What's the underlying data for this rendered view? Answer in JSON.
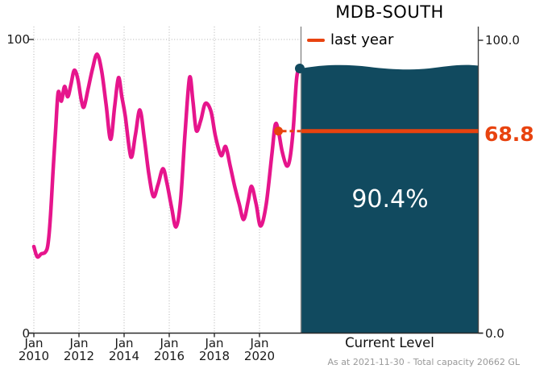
{
  "chart_data": {
    "type": "line",
    "title": "MDB-SOUTH",
    "legend": {
      "label": "last year",
      "position": "upper right panel"
    },
    "footnote": "As at 2021-11-30 - Total capacity 20662 GL",
    "colors": {
      "history_line": "#e6158c",
      "last_year": "#e8430f",
      "water": "#114a5f",
      "grid": "#b0b0b0",
      "spine": "#2b2b2b",
      "panel_spine": "#888888",
      "footnote_gray": "#999999"
    },
    "left_axis": {
      "range": [
        0,
        100
      ],
      "ticks": [
        {
          "value": 100,
          "label": "100"
        },
        {
          "value": 0,
          "label": "0"
        }
      ]
    },
    "right_axis": {
      "range": [
        0,
        100
      ],
      "ticks": [
        {
          "value": 100,
          "label": "100.0"
        },
        {
          "value": 0,
          "label": "0.0"
        }
      ]
    },
    "x_ticks": [
      {
        "year": 2010,
        "line1": "Jan",
        "line2": "2010"
      },
      {
        "year": 2012,
        "line1": "Jan",
        "line2": "2012"
      },
      {
        "year": 2014,
        "line1": "Jan",
        "line2": "2014"
      },
      {
        "year": 2016,
        "line1": "Jan",
        "line2": "2016"
      },
      {
        "year": 2018,
        "line1": "Jan",
        "line2": "2018"
      },
      {
        "year": 2020,
        "line1": "Jan",
        "line2": "2020"
      }
    ],
    "series": {
      "name": "storage-percentage-history",
      "x_unit": "decimal-year",
      "y_unit": "percent-full",
      "points": [
        [
          2010.0,
          29.5
        ],
        [
          2010.15,
          26
        ],
        [
          2010.33,
          27
        ],
        [
          2010.5,
          27.5
        ],
        [
          2010.62,
          30
        ],
        [
          2010.73,
          39
        ],
        [
          2010.85,
          55
        ],
        [
          2010.97,
          70
        ],
        [
          2011.08,
          82
        ],
        [
          2011.22,
          79
        ],
        [
          2011.36,
          84
        ],
        [
          2011.5,
          80.5
        ],
        [
          2011.64,
          84.5
        ],
        [
          2011.79,
          89.5
        ],
        [
          2011.95,
          86.5
        ],
        [
          2012.1,
          79.5
        ],
        [
          2012.22,
          77
        ],
        [
          2012.4,
          83
        ],
        [
          2012.6,
          90
        ],
        [
          2012.8,
          95
        ],
        [
          2013.0,
          89.5
        ],
        [
          2013.2,
          78
        ],
        [
          2013.4,
          66
        ],
        [
          2013.58,
          77
        ],
        [
          2013.75,
          87
        ],
        [
          2013.9,
          80.5
        ],
        [
          2014.05,
          74
        ],
        [
          2014.3,
          60
        ],
        [
          2014.5,
          67.5
        ],
        [
          2014.7,
          76
        ],
        [
          2014.9,
          66
        ],
        [
          2015.1,
          54
        ],
        [
          2015.3,
          46.5
        ],
        [
          2015.5,
          50.5
        ],
        [
          2015.72,
          56
        ],
        [
          2015.9,
          51
        ],
        [
          2016.1,
          43
        ],
        [
          2016.3,
          36.2
        ],
        [
          2016.5,
          45
        ],
        [
          2016.7,
          68
        ],
        [
          2016.9,
          87
        ],
        [
          2017.05,
          79
        ],
        [
          2017.2,
          69
        ],
        [
          2017.4,
          72.5
        ],
        [
          2017.6,
          78.2
        ],
        [
          2017.85,
          75.5
        ],
        [
          2018.05,
          67
        ],
        [
          2018.3,
          60.5
        ],
        [
          2018.5,
          63.5
        ],
        [
          2018.7,
          57
        ],
        [
          2018.9,
          50
        ],
        [
          2019.1,
          44
        ],
        [
          2019.3,
          38.7
        ],
        [
          2019.5,
          45
        ],
        [
          2019.65,
          50
        ],
        [
          2019.85,
          44
        ],
        [
          2020.05,
          36.5
        ],
        [
          2020.3,
          44
        ],
        [
          2020.55,
          61
        ],
        [
          2020.7,
          71
        ],
        [
          2020.84,
          68.8
        ],
        [
          2021.0,
          62
        ],
        [
          2021.2,
          57
        ],
        [
          2021.35,
          59.5
        ],
        [
          2021.5,
          70
        ],
        [
          2021.65,
          87
        ],
        [
          2021.8,
          90.4
        ]
      ]
    },
    "last_year": {
      "value": 68.8,
      "t": 2020.84,
      "label": "68.8"
    },
    "current": {
      "percent": 90.4,
      "label": "90.4%",
      "caption": "Current Level"
    }
  }
}
